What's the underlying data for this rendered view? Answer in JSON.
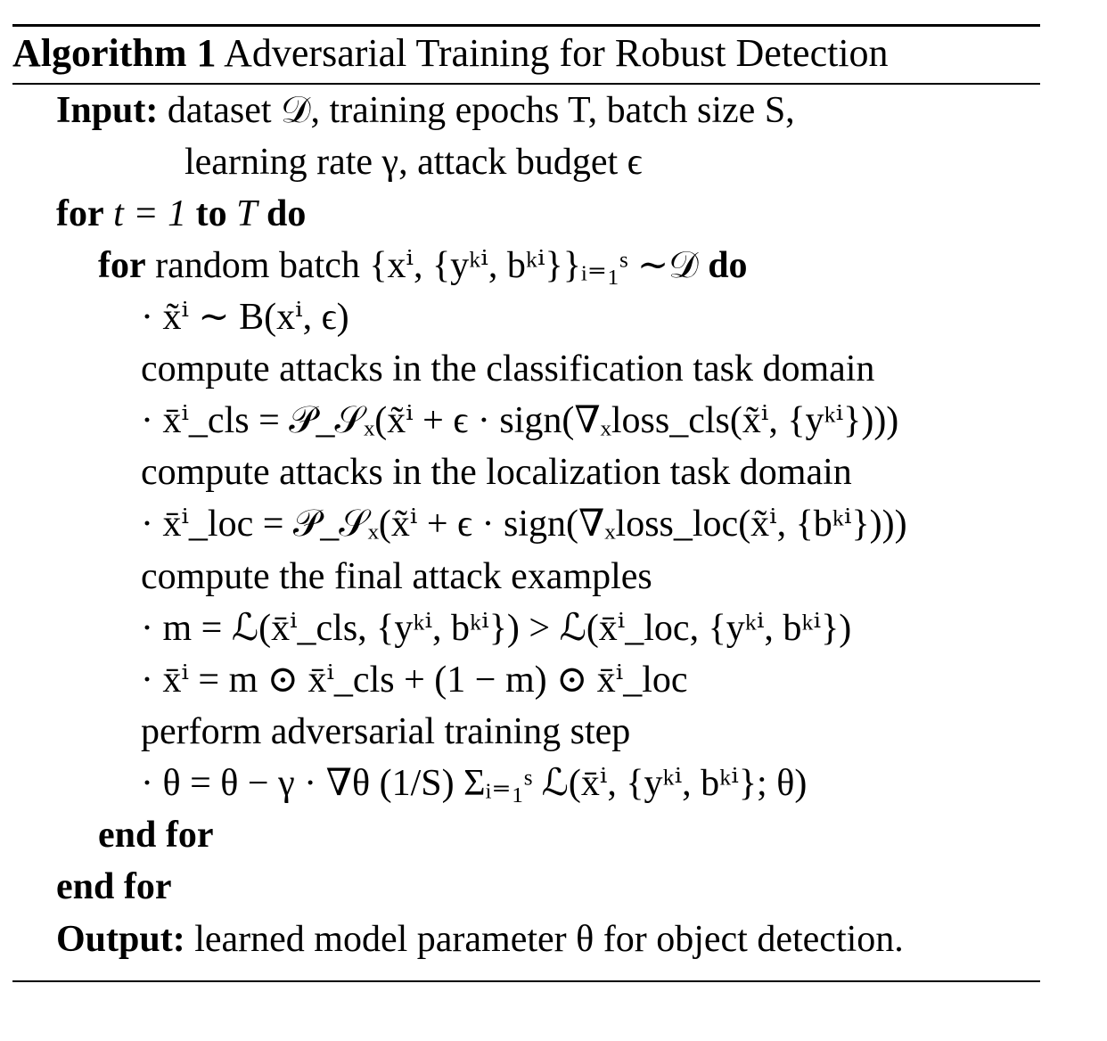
{
  "algorithm": {
    "label": "Algorithm 1",
    "title": "Adversarial Training for Robust Detection"
  },
  "keywords": {
    "input": "Input:",
    "for": "for",
    "to": "to",
    "do": "do",
    "end_for": "end for",
    "output": "Output:"
  },
  "input": {
    "line1": "dataset 𝒟, training epochs T, batch size S,",
    "line2": "learning rate γ, attack budget ϵ"
  },
  "loop_outer": {
    "condition": "t = 1",
    "bound": "T"
  },
  "loop_inner": {
    "condition": "random batch {xⁱ, {yᵏⁱ, bᵏⁱ}}ᵢ₌₁ˢ ∼𝒟"
  },
  "steps": {
    "sample": "· x̃ⁱ ∼ B(xⁱ, ϵ)",
    "comment_cls": "compute attacks in the classification task domain",
    "attack_cls": "· x̄ⁱ_cls = 𝒫_𝒮ₓ(x̃ⁱ + ϵ · sign(∇ₓloss_cls(x̃ⁱ, {yᵏⁱ})))",
    "comment_loc": "compute attacks in the localization task domain",
    "attack_loc": "· x̄ⁱ_loc = 𝒫_𝒮ₓ(x̃ⁱ + ϵ · sign(∇ₓloss_loc(x̃ⁱ, {bᵏⁱ})))",
    "comment_final": "compute the final attack examples",
    "mask": "· m = ℒ(x̄ⁱ_cls, {yᵏⁱ, bᵏⁱ}) > ℒ(x̄ⁱ_loc, {yᵏⁱ, bᵏⁱ})",
    "combine": "· x̄ⁱ = m ⊙ x̄ⁱ_cls + (1 − m) ⊙ x̄ⁱ_loc",
    "comment_train": "perform adversarial training step",
    "update": "· θ = θ − γ · ∇θ (1/S) Σᵢ₌₁ˢ ℒ(x̄ⁱ, {yᵏⁱ, bᵏⁱ}; θ)"
  },
  "output": {
    "text": "learned model parameter θ for object detection."
  }
}
